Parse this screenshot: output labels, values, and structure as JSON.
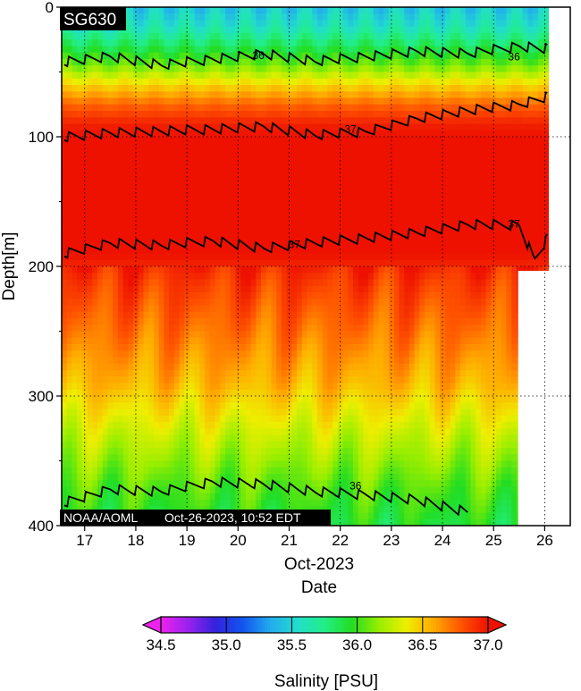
{
  "chart_data": {
    "type": "heatmap",
    "title": "SG630",
    "credit": "NOAA/AOML",
    "timestamp": "Oct-26-2023, 10:52 EDT",
    "xlabel": "Date",
    "xlabel_month": "Oct-2023",
    "ylabel": "Depth[m]",
    "x_ticks": [
      "17",
      "18",
      "19",
      "20",
      "21",
      "22",
      "23",
      "24",
      "25",
      "26"
    ],
    "x_range": [
      16.55,
      26.5
    ],
    "y_ticks": [
      "0",
      "100",
      "200",
      "300",
      "400"
    ],
    "y_tick_values": [
      0,
      100,
      200,
      300,
      400
    ],
    "y_range": [
      0,
      400
    ],
    "y_reversed": true,
    "grid": true,
    "data_extent": [
      {
        "x0": 16.55,
        "x1": 25.47,
        "depth_max": 400
      },
      {
        "x0": 25.47,
        "x1": 26.07,
        "depth_max": 203
      }
    ],
    "salinity_profile": {
      "depth": [
        0,
        15,
        30,
        45,
        60,
        75,
        90,
        100,
        150,
        190,
        210,
        250,
        290,
        330,
        370,
        400
      ],
      "salinity": [
        35.45,
        35.6,
        35.85,
        36.1,
        36.45,
        36.75,
        36.95,
        37.0,
        37.0,
        37.0,
        36.88,
        36.72,
        36.55,
        36.28,
        36.05,
        35.92
      ]
    },
    "contours": [
      {
        "value": 36,
        "label": "36",
        "depth_by_day": [
          [
            16.6,
            42
          ],
          [
            17.5,
            38
          ],
          [
            18.5,
            45
          ],
          [
            19.5,
            40
          ],
          [
            20.5,
            36
          ],
          [
            21.5,
            42
          ],
          [
            22.5,
            38
          ],
          [
            23.5,
            34
          ],
          [
            24.5,
            36
          ],
          [
            25.5,
            30
          ],
          [
            26.05,
            32
          ]
        ],
        "label_positions": [
          [
            20.4,
            40
          ],
          [
            25.4,
            41
          ]
        ]
      },
      {
        "value": 37,
        "label": "37",
        "depth_by_day": [
          [
            16.6,
            100
          ],
          [
            17.5,
            97
          ],
          [
            18.5,
            96
          ],
          [
            19.5,
            94
          ],
          [
            20.5,
            92
          ],
          [
            21.5,
            99
          ],
          [
            22.5,
            96
          ],
          [
            23.5,
            86
          ],
          [
            24.5,
            80
          ],
          [
            25.5,
            75
          ],
          [
            26.05,
            69
          ]
        ],
        "label_positions": [
          [
            22.2,
            97
          ]
        ]
      },
      {
        "value": 37,
        "label": "37",
        "depth_by_day": [
          [
            16.6,
            190
          ],
          [
            17.5,
            182
          ],
          [
            18.5,
            184
          ],
          [
            19.5,
            180
          ],
          [
            20.5,
            186
          ],
          [
            21.5,
            182
          ],
          [
            22.5,
            178
          ],
          [
            23.5,
            174
          ],
          [
            24.5,
            168
          ],
          [
            25.5,
            168
          ],
          [
            25.8,
            195
          ],
          [
            26.05,
            178
          ]
        ],
        "label_positions": [
          [
            21.1,
            186
          ],
          [
            25.4,
            170
          ]
        ]
      },
      {
        "value": 36,
        "label": "36",
        "depth_by_day": [
          [
            16.6,
            382
          ],
          [
            17.5,
            372
          ],
          [
            18.5,
            374
          ],
          [
            19.5,
            366
          ],
          [
            20.5,
            368
          ],
          [
            21.5,
            374
          ],
          [
            22.5,
            376
          ],
          [
            23.5,
            380
          ],
          [
            24.5,
            390
          ]
        ],
        "label_positions": [
          [
            22.3,
            372
          ]
        ]
      }
    ]
  },
  "colorbar": {
    "label": "Salinity [PSU]",
    "range": [
      34.5,
      37.0
    ],
    "tick_labels": [
      "34.5",
      "35.0",
      "35.5",
      "36.0",
      "36.5",
      "37.0"
    ],
    "tick_values": [
      34.5,
      35.0,
      35.5,
      36.0,
      36.5,
      37.0
    ],
    "colors": [
      "#ee22ee",
      "#9922ee",
      "#3322dd",
      "#1155ee",
      "#22aaee",
      "#22ddcc",
      "#22ee88",
      "#22dd22",
      "#99ee00",
      "#eeee00",
      "#ffaa00",
      "#ff5500",
      "#ee1100"
    ],
    "over_color": "#ee1100",
    "under_color": "#ee22ee"
  }
}
